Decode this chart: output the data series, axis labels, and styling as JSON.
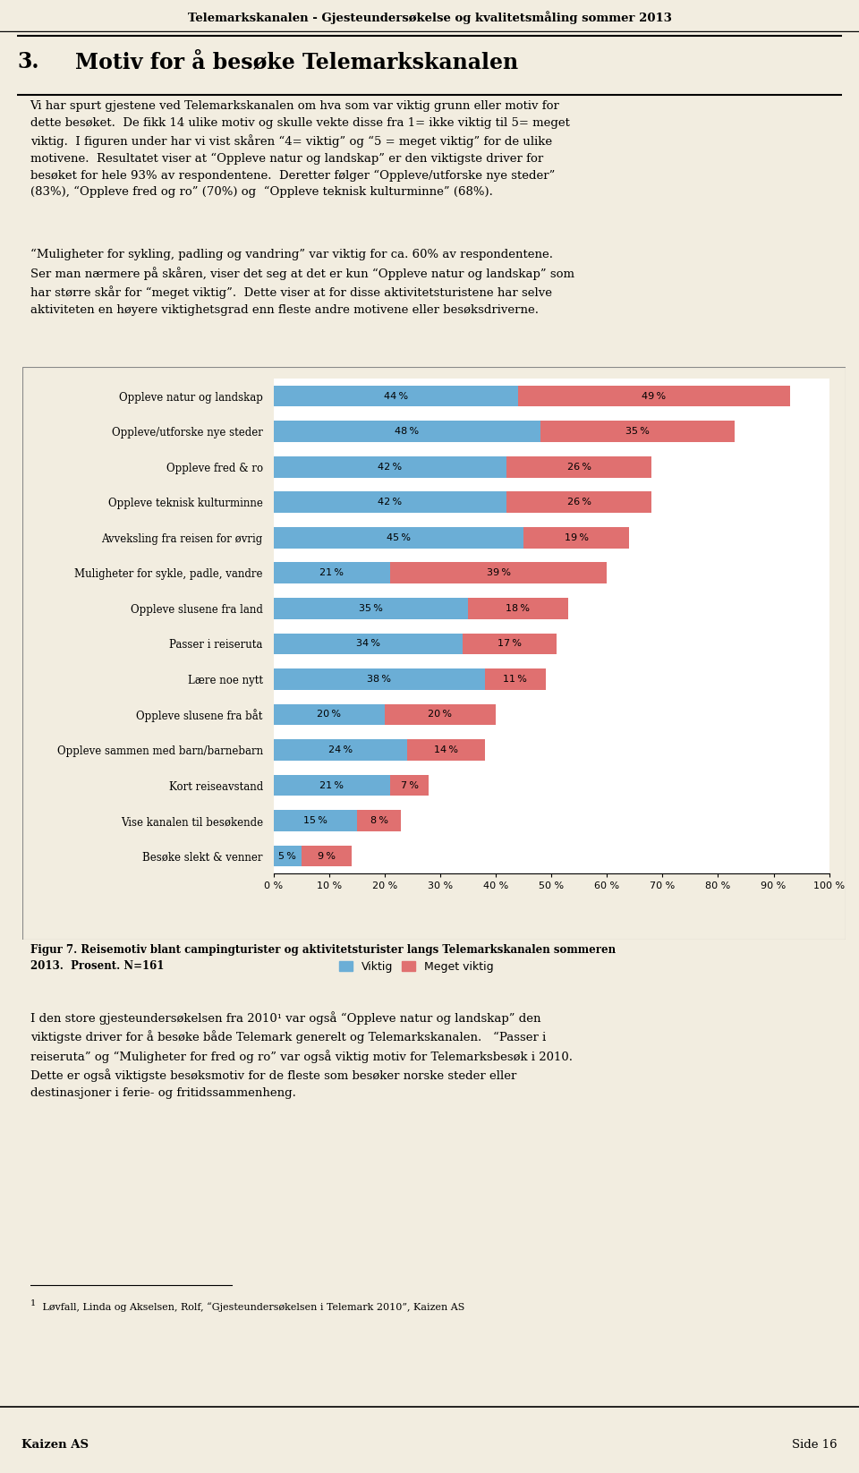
{
  "header": "Telemarkskanalen - Gjesteundersøkelse og kvalitetsmåling sommer 2013",
  "section_number": "3.",
  "section_title": "Motiv for å besøke Telemarkskanalen",
  "categories": [
    "Oppleve natur og landskap",
    "Oppleve/utforske nye steder",
    "Oppleve fred & ro",
    "Oppleve teknisk kulturminne",
    "Avveksling fra reisen for øvrig",
    "Muligheter for sykle, padle, vandre",
    "Oppleve slusene fra land",
    "Passer i reiseruta",
    "Lære noe nytt",
    "Oppleve slusene fra båt",
    "Oppleve sammen med barn/barnebarn",
    "Kort reiseavstand",
    "Vise kanalen til besøkende",
    "Besøke slekt & venner"
  ],
  "viktig": [
    44,
    48,
    42,
    42,
    45,
    21,
    35,
    34,
    38,
    20,
    24,
    21,
    15,
    5
  ],
  "meget_viktig": [
    49,
    35,
    26,
    26,
    19,
    39,
    18,
    17,
    11,
    20,
    14,
    7,
    8,
    9
  ],
  "color_viktig": "#6baed6",
  "color_meget_viktig": "#e07070",
  "legend_viktig": "Viktig",
  "legend_meget_viktig": "Meget viktig",
  "xticks": [
    0,
    10,
    20,
    30,
    40,
    50,
    60,
    70,
    80,
    90,
    100
  ],
  "xtick_labels": [
    "0 %",
    "10 %",
    "20 %",
    "30 %",
    "40 %",
    "50 %",
    "60 %",
    "70 %",
    "80 %",
    "90 %",
    "100 %"
  ],
  "figure_caption_bold": "Figur 7. Reisemotiv blant campingturister og aktivitetsturister langs Telemarkskanalen sommeren\n2013.  Prosent. N=161",
  "footer_left": "Kaizen AS",
  "footer_right": "Side 16",
  "background_color": "#f2ede0",
  "chart_bg": "#ffffff",
  "header_bg": "#ffffff",
  "footnote_superscript": "1",
  "footnote_text": " Løvfall, Linda og Akselsen, Rolf, “Gjesteundersøkelsen i Telemark 2010”, Kaizen AS"
}
